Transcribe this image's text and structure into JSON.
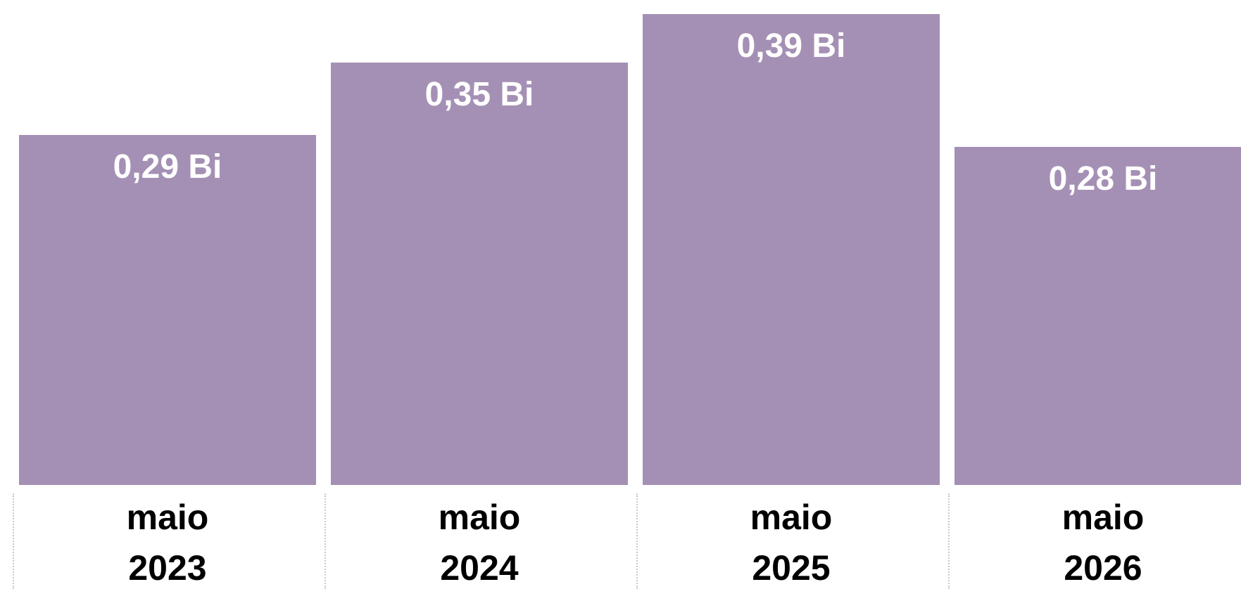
{
  "chart_data": {
    "type": "bar",
    "categories": [
      "maio 2023",
      "maio 2024",
      "maio 2025",
      "maio 2026"
    ],
    "values": [
      0.29,
      0.35,
      0.39,
      0.28
    ],
    "value_labels": [
      "0,29 Bi",
      "0,35 Bi",
      "0,39 Bi",
      "0,28 Bi"
    ],
    "color": "#a590b5"
  }
}
